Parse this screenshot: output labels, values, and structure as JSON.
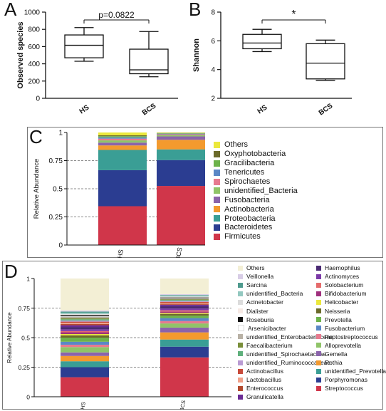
{
  "panels": {
    "a": "A",
    "b": "B",
    "c": "C",
    "d": "D"
  },
  "chart_data": [
    {
      "type": "box",
      "panel": "A",
      "ylabel": "Observed species",
      "ylim": [
        0,
        1000
      ],
      "yticks": [
        0,
        200,
        400,
        600,
        800,
        1000
      ],
      "categories": [
        "HS",
        "BCS"
      ],
      "boxes": [
        {
          "min": 430,
          "q1": 470,
          "median": 615,
          "q3": 735,
          "max": 820
        },
        {
          "min": 250,
          "q1": 285,
          "median": 330,
          "q3": 570,
          "max": 775
        }
      ],
      "annotation": "p=0.0822"
    },
    {
      "type": "box",
      "panel": "B",
      "ylabel": "Shannon",
      "ylim": [
        2,
        8
      ],
      "yticks": [
        2,
        4,
        6,
        8
      ],
      "categories": [
        "HS",
        "BCS"
      ],
      "boxes": [
        {
          "min": 5.25,
          "q1": 5.45,
          "median": 5.85,
          "q3": 6.45,
          "max": 6.8
        },
        {
          "min": 3.25,
          "q1": 3.35,
          "median": 4.45,
          "q3": 5.8,
          "max": 6.05
        }
      ],
      "annotation": "*"
    },
    {
      "type": "stacked_bar",
      "panel": "C",
      "ylabel": "Relative Abundance",
      "ylim": [
        0,
        1
      ],
      "yticks": [
        "0",
        "0.25",
        "0.5",
        "0.75",
        "1"
      ],
      "categories": [
        "HS",
        "BCS"
      ],
      "series": [
        {
          "name": "Firmicutes",
          "color": "#d0364a",
          "values": [
            0.345,
            0.525
          ]
        },
        {
          "name": "Bacteroidetes",
          "color": "#2b3d91",
          "values": [
            0.32,
            0.23
          ]
        },
        {
          "name": "Proteobacteria",
          "color": "#3a9e95",
          "values": [
            0.18,
            0.095
          ]
        },
        {
          "name": "Actinobacteria",
          "color": "#f39a2e",
          "values": [
            0.04,
            0.085
          ]
        },
        {
          "name": "Fusobacteria",
          "color": "#8a63ab",
          "values": [
            0.025,
            0.03
          ]
        },
        {
          "name": "unidentified_Bacteria",
          "color": "#8fc468",
          "values": [
            0.02,
            0.012
          ]
        },
        {
          "name": "Spirochaetes",
          "color": "#e77a8f",
          "values": [
            0.015,
            0.007
          ]
        },
        {
          "name": "Tenericutes",
          "color": "#5a87c6",
          "values": [
            0.012,
            0.005
          ]
        },
        {
          "name": "Gracilibacteria",
          "color": "#6db34b",
          "values": [
            0.01,
            0.004
          ]
        },
        {
          "name": "Oxyphotobacteria",
          "color": "#6b6a2a",
          "values": [
            0.008,
            0.003
          ]
        },
        {
          "name": "Others",
          "color": "#ebe83c",
          "values": [
            0.025,
            0.004
          ]
        }
      ]
    },
    {
      "type": "stacked_bar",
      "panel": "D",
      "ylabel": "Relative Abundance",
      "ylim": [
        0,
        1
      ],
      "yticks": [
        "0",
        "0.25",
        "0.5",
        "0.75",
        "1"
      ],
      "categories": [
        "HS",
        "BCS"
      ],
      "series": [
        {
          "name": "Streptococcus",
          "color": "#d0364a",
          "values": [
            0.165,
            0.33
          ]
        },
        {
          "name": "Porphyromonas",
          "color": "#2b3d91",
          "values": [
            0.085,
            0.09
          ]
        },
        {
          "name": "unidentified_Prevotellaceae",
          "color": "#3a9e95",
          "values": [
            0.05,
            0.06
          ]
        },
        {
          "name": "Rothia",
          "color": "#f39a2e",
          "values": [
            0.045,
            0.06
          ]
        },
        {
          "name": "Gemella",
          "color": "#8a63ab",
          "values": [
            0.03,
            0.04
          ]
        },
        {
          "name": "Alloprevotella",
          "color": "#8fc468",
          "values": [
            0.045,
            0.035
          ]
        },
        {
          "name": "Peptostreptococcus",
          "color": "#e77a8f",
          "values": [
            0.02,
            0.02
          ]
        },
        {
          "name": "Fusobacterium",
          "color": "#5a87c6",
          "values": [
            0.025,
            0.025
          ]
        },
        {
          "name": "Prevotella",
          "color": "#6db34b",
          "values": [
            0.035,
            0.02
          ]
        },
        {
          "name": "Neisseria",
          "color": "#6b6a2a",
          "values": [
            0.02,
            0.015
          ]
        },
        {
          "name": "Helicobacter",
          "color": "#ebe83c",
          "values": [
            0.01,
            0.008
          ]
        },
        {
          "name": "Bifidobacterium",
          "color": "#9f2f7d",
          "values": [
            0.015,
            0.012
          ]
        },
        {
          "name": "Solobacterium",
          "color": "#e56b6b",
          "values": [
            0.01,
            0.01
          ]
        },
        {
          "name": "Actinomyces",
          "color": "#7c3aa8",
          "values": [
            0.015,
            0.015
          ]
        },
        {
          "name": "Haemophilus",
          "color": "#4a2a73",
          "values": [
            0.02,
            0.02
          ]
        },
        {
          "name": "Granulicatella",
          "color": "#6a2a94",
          "values": [
            0.015,
            0.012
          ]
        },
        {
          "name": "Enterococcus",
          "color": "#b34a2e",
          "values": [
            0.01,
            0.008
          ]
        },
        {
          "name": "Lactobacillus",
          "color": "#f1a18a",
          "values": [
            0.01,
            0.008
          ]
        },
        {
          "name": "Actinobacillus",
          "color": "#c84a3a",
          "values": [
            0.01,
            0.008
          ]
        },
        {
          "name": "unidentified_Ruminococcaceae",
          "color": "#b99bd3",
          "values": [
            0.01,
            0.008
          ]
        },
        {
          "name": "unidentified_Spirochaetaceae",
          "color": "#5fb07c",
          "values": [
            0.01,
            0.008
          ]
        },
        {
          "name": "Faecalibacterium",
          "color": "#7a8f3a",
          "values": [
            0.01,
            0.006
          ]
        },
        {
          "name": "unidentified_Enterobacteriaceae",
          "color": "#b8b1a5",
          "values": [
            0.01,
            0.006
          ]
        },
        {
          "name": "Arsenicibacter",
          "color": "#ffffff",
          "values": [
            0.005,
            0.003
          ]
        },
        {
          "name": "Roseburia",
          "color": "#111111",
          "values": [
            0.01,
            0.006
          ]
        },
        {
          "name": "Dialister",
          "color": "#f6e9e4",
          "values": [
            0.005,
            0.004
          ]
        },
        {
          "name": "Acinetobacter",
          "color": "#dcdcdc",
          "values": [
            0.005,
            0.004
          ]
        },
        {
          "name": "unidentified_Bacteria",
          "color": "#93c8c0",
          "values": [
            0.01,
            0.006
          ]
        },
        {
          "name": "Sarcina",
          "color": "#4e9a8e",
          "values": [
            0.01,
            0.006
          ]
        },
        {
          "name": "Veillonella",
          "color": "#d8cde6",
          "values": [
            0.01,
            0.008
          ]
        },
        {
          "name": "Others",
          "color": "#f3efd5",
          "values": [
            0.27,
            0.131
          ]
        }
      ],
      "legend_columns": [
        [
          "Others",
          "Veillonella",
          "Sarcina",
          "unidentified_Bacteria",
          "Acinetobacter",
          "Dialister",
          "Roseburia",
          "Arsenicibacter",
          "unidentified_Enterobacteriaceae",
          "Faecalibacterium",
          "unidentified_Spirochaetaceae",
          "unidentified_Ruminococcaceae",
          "Actinobacillus",
          "Lactobacillus",
          "Enterococcus",
          "Granulicatella"
        ],
        [
          "Haemophilus",
          "Actinomyces",
          "Solobacterium",
          "Bifidobacterium",
          "Helicobacter",
          "Neisseria",
          "Prevotella",
          "Fusobacterium",
          "Peptostreptococcus",
          "Alloprevotella",
          "Gemella",
          "Rothia",
          "unidentified_Prevotellaceae",
          "Porphyromonas",
          "Streptococcus"
        ]
      ]
    }
  ]
}
